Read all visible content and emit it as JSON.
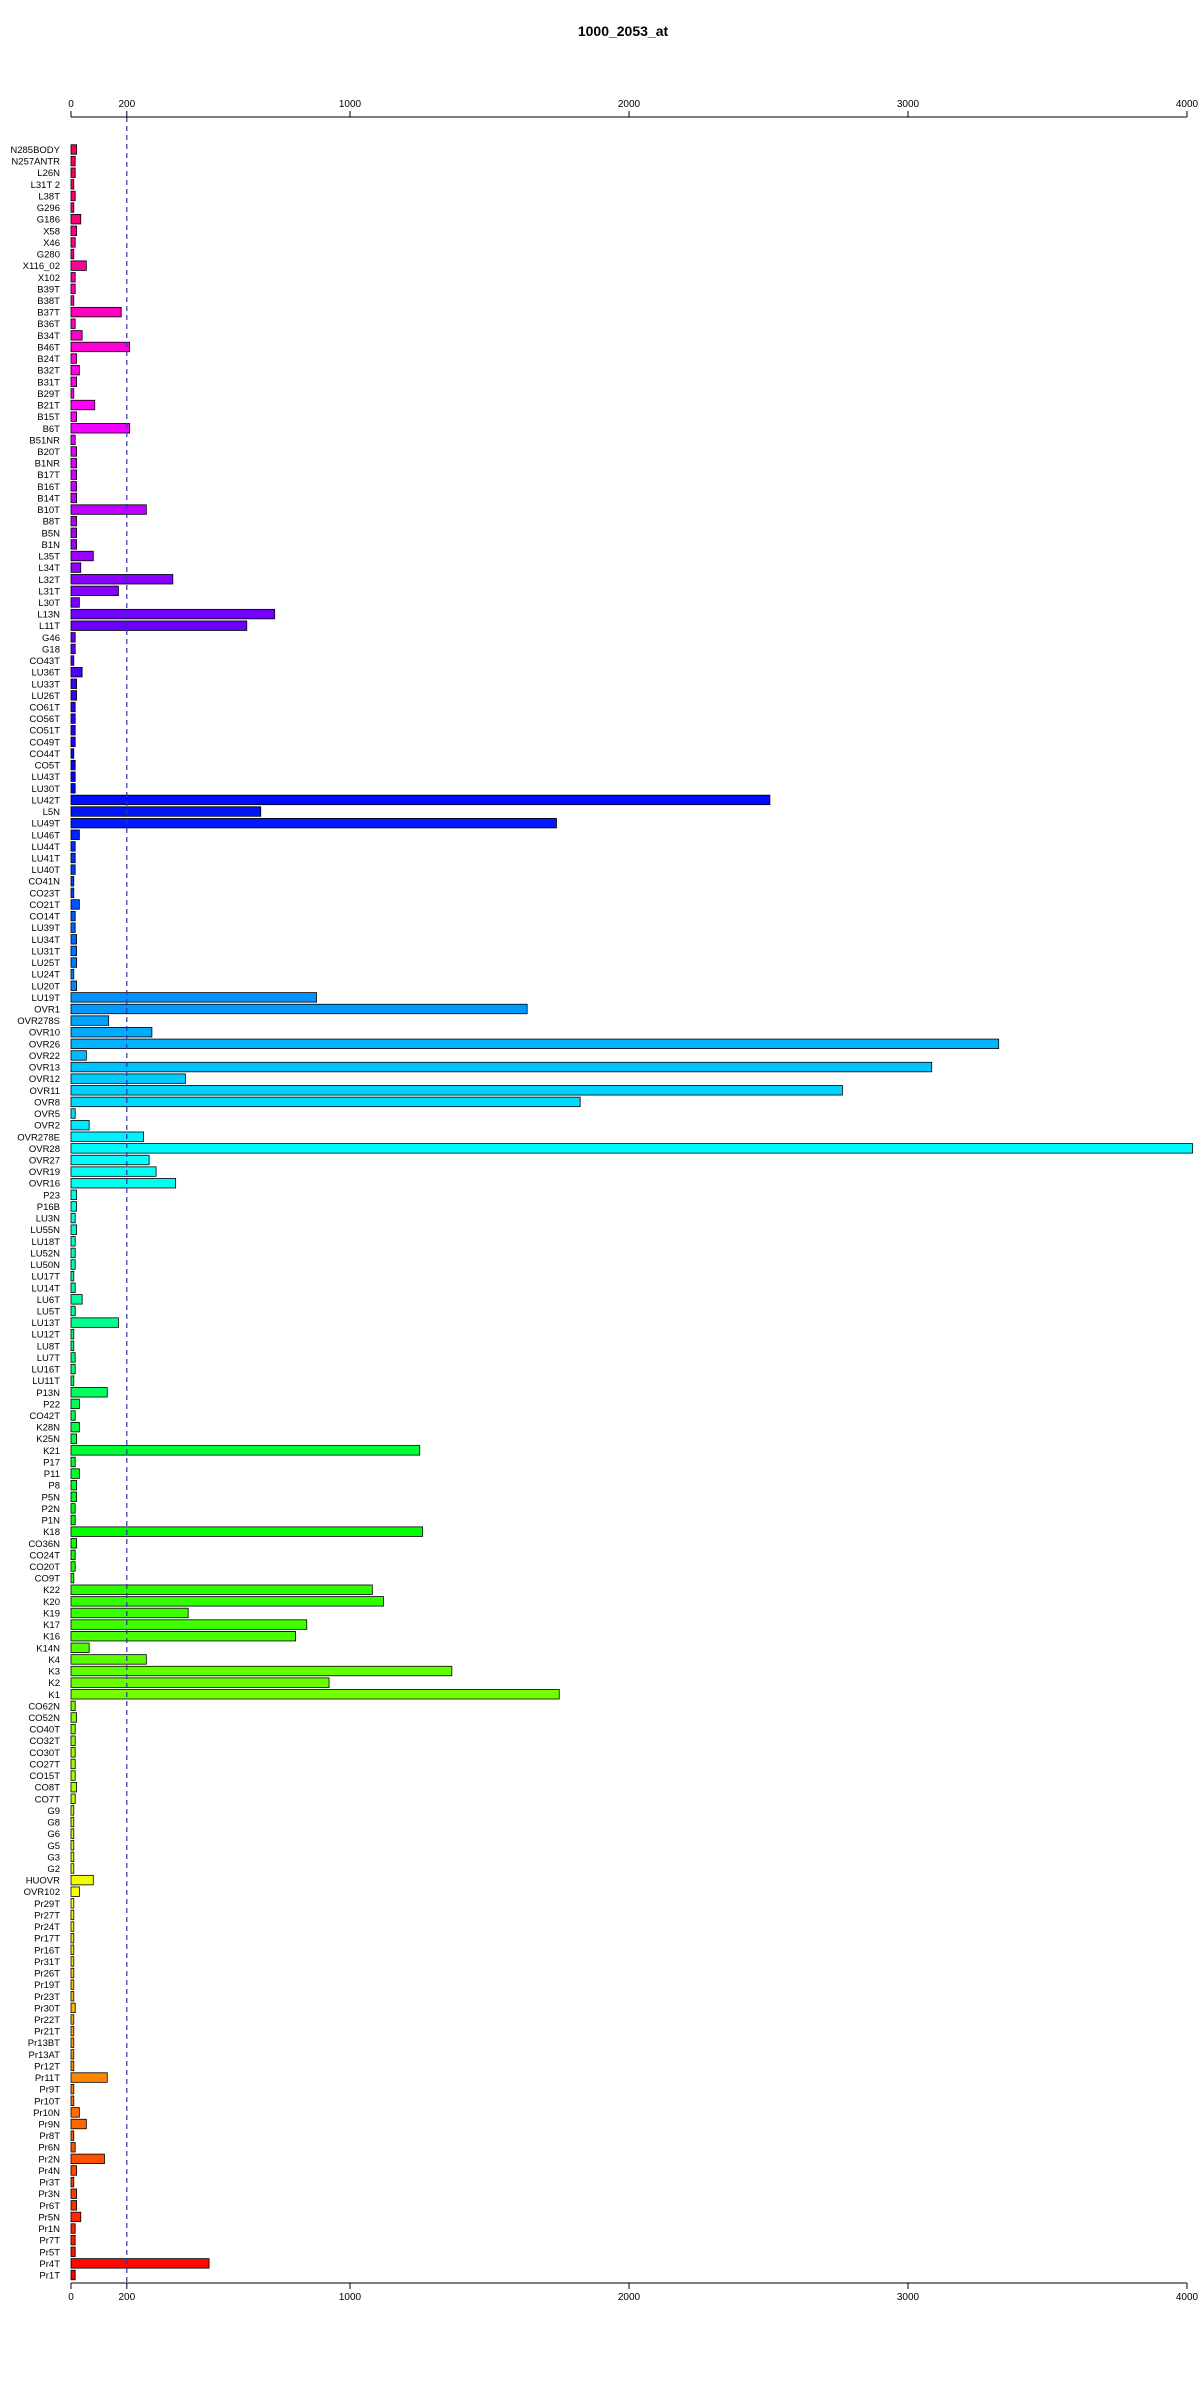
{
  "chart_data": {
    "type": "bar",
    "orientation": "horizontal",
    "title": "1000_2053_at",
    "xlabel": "",
    "ylabel": "",
    "xlim": [
      0,
      4000
    ],
    "ticks": [
      0,
      200,
      1000,
      2000,
      3000,
      4000
    ],
    "reference_line": {
      "value": 200,
      "style": "dashed",
      "color": "#3333aa"
    },
    "axes": "top and bottom",
    "grid": false,
    "legend": "none",
    "color_scheme": "rainbow",
    "categories": [
      "N285BODY",
      "N257ANTR",
      "L26N",
      "L31T 2",
      "L38T",
      "G296",
      "G186",
      "X58",
      "X46",
      "G280",
      "X116_02",
      "X102",
      "B39T",
      "B38T",
      "B37T",
      "B36T",
      "B34T",
      "B46T",
      "B24T",
      "B32T",
      "B31T",
      "B29T",
      "B21T",
      "B15T",
      "B6T",
      "B51NR",
      "B20T",
      "B1NR",
      "B17T",
      "B16T",
      "B14T",
      "B10T",
      "B8T",
      "B5N",
      "B1N",
      "L35T",
      "L34T",
      "L32T",
      "L31T",
      "L30T",
      "L13N",
      "L11T",
      "G46",
      "G18",
      "CO43T",
      "LU36T",
      "LU33T",
      "LU26T",
      "CO61T",
      "CO56T",
      "CO51T",
      "CO49T",
      "CO44T",
      "CO5T",
      "LU43T",
      "LU30T",
      "LU42T",
      "L5N",
      "LU49T",
      "LU46T",
      "LU44T",
      "LU41T",
      "LU40T",
      "CO41N",
      "CO23T",
      "CO21T",
      "CO14T",
      "LU39T",
      "LU34T",
      "LU31T",
      "LU25T",
      "LU24T",
      "LU20T",
      "LU19T",
      "OVR1",
      "OVR278S",
      "OVR10",
      "OVR26",
      "OVR22",
      "OVR13",
      "OVR12",
      "OVR11",
      "OVR8",
      "OVR5",
      "OVR2",
      "OVR278E",
      "OVR28",
      "OVR27",
      "OVR19",
      "OVR16",
      "P23",
      "P16B",
      "LU3N",
      "LU55N",
      "LU18T",
      "LU52N",
      "LU50N",
      "LU17T",
      "LU14T",
      "LU6T",
      "LU5T",
      "LU13T",
      "LU12T",
      "LU8T",
      "LU7T",
      "LU16T",
      "LU11T",
      "P13N",
      "P22",
      "CO42T",
      "K28N",
      "K25N",
      "K21",
      "P17",
      "P11",
      "P8",
      "P5N",
      "P2N",
      "P1N",
      "K18",
      "CO36N",
      "CO24T",
      "CO20T",
      "CO9T",
      "K22",
      "K20",
      "K19",
      "K17",
      "K16",
      "K14N",
      "K4",
      "K3",
      "K2",
      "K1",
      "CO62N",
      "CO52N",
      "CO40T",
      "CO32T",
      "CO30T",
      "CO27T",
      "CO15T",
      "CO8T",
      "CO7T",
      "G9",
      "G8",
      "G6",
      "G5",
      "G3",
      "G2",
      "HUOVR",
      "OVR102",
      "Pr29T",
      "Pr27T",
      "Pr24T",
      "Pr17T",
      "Pr16T",
      "Pr31T",
      "Pr26T",
      "Pr19T",
      "Pr23T",
      "Pr30T",
      "Pr22T",
      "Pr21T",
      "Pr13BT",
      "Pr13AT",
      "Pr12T",
      "Pr11T",
      "Pr9T",
      "Pr10T",
      "Pr10N",
      "Pr9N",
      "Pr8T",
      "Pr6N",
      "Pr2N",
      "Pr4N",
      "Pr3T",
      "Pr3N",
      "Pr6T",
      "Pr5N",
      "Pr1N",
      "Pr7T",
      "Pr5T",
      "Pr4T",
      "Pr1T"
    ],
    "values": [
      20,
      15,
      15,
      10,
      15,
      10,
      35,
      20,
      15,
      10,
      55,
      15,
      15,
      10,
      180,
      15,
      40,
      210,
      20,
      30,
      20,
      10,
      85,
      20,
      210,
      15,
      20,
      20,
      20,
      20,
      20,
      270,
      20,
      20,
      20,
      80,
      35,
      365,
      170,
      30,
      730,
      630,
      15,
      15,
      10,
      40,
      20,
      20,
      15,
      15,
      15,
      15,
      10,
      15,
      15,
      15,
      2505,
      680,
      1740,
      30,
      15,
      15,
      15,
      10,
      10,
      30,
      15,
      15,
      20,
      20,
      20,
      10,
      20,
      880,
      1635,
      135,
      290,
      3325,
      55,
      3085,
      410,
      2765,
      1825,
      15,
      65,
      260,
      4020,
      280,
      305,
      375,
      20,
      20,
      15,
      20,
      15,
      15,
      15,
      10,
      15,
      40,
      15,
      170,
      10,
      10,
      15,
      15,
      10,
      130,
      30,
      15,
      30,
      20,
      1250,
      15,
      30,
      20,
      20,
      15,
      15,
      1260,
      20,
      15,
      15,
      10,
      1080,
      1120,
      420,
      845,
      805,
      65,
      270,
      1365,
      925,
      1750,
      15,
      20,
      15,
      15,
      15,
      15,
      15,
      20,
      15,
      10,
      10,
      10,
      10,
      10,
      10,
      80,
      30,
      10,
      10,
      10,
      10,
      10,
      10,
      10,
      10,
      10,
      15,
      10,
      10,
      10,
      10,
      10,
      130,
      10,
      10,
      30,
      55,
      10,
      15,
      120,
      20,
      10,
      20,
      20,
      35,
      15,
      15,
      15,
      495,
      15
    ]
  }
}
